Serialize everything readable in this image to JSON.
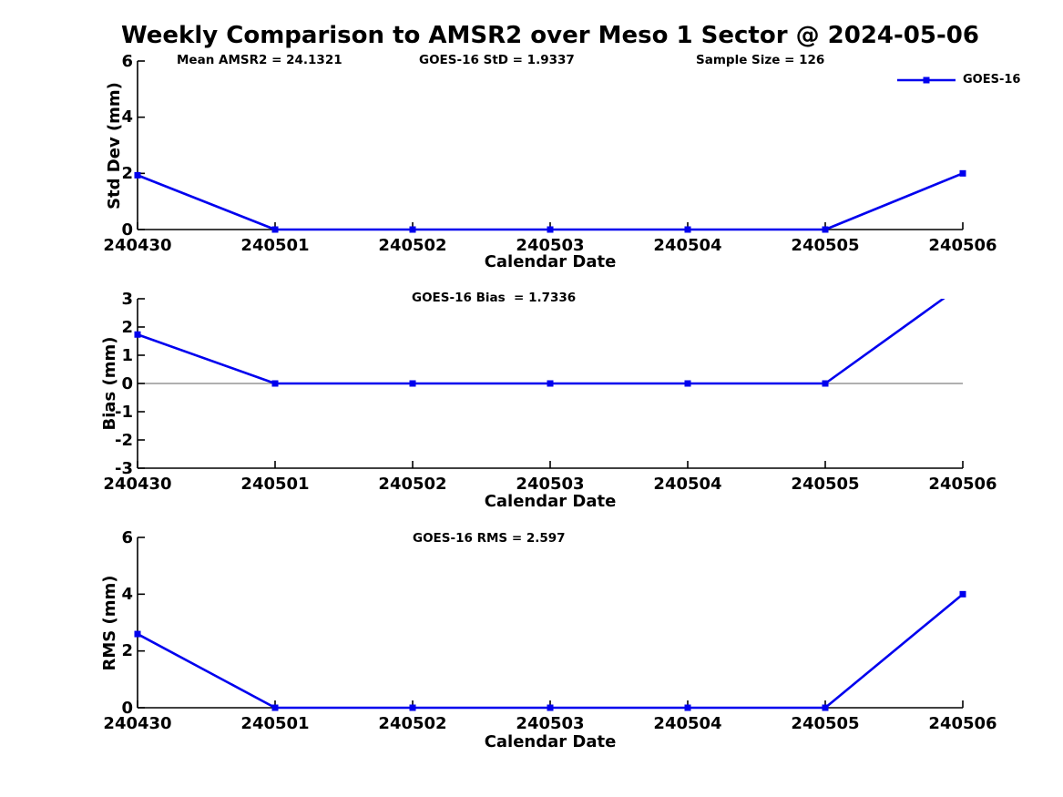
{
  "title": "Weekly Comparison to AMSR2 over Meso 1 Sector @ 2024-05-06",
  "legend": {
    "label": "GOES-16",
    "position": "top-right"
  },
  "colors": {
    "line": "#0000EE",
    "marker": "#0000EE",
    "zero_line": "#808080",
    "axis": "#000000",
    "text": "#000000"
  },
  "chart_data": [
    {
      "type": "line",
      "panel": "std-dev",
      "annotations": [
        "Mean AMSR2 = 24.1321",
        "GOES-16 StD = 1.9337",
        "Sample Size = 126"
      ],
      "categories": [
        "240430",
        "240501",
        "240502",
        "240503",
        "240504",
        "240505",
        "240506"
      ],
      "series": [
        {
          "name": "GOES-16",
          "values": [
            1.9337,
            0,
            0,
            0,
            0,
            0,
            2.0
          ]
        }
      ],
      "xlabel": "Calendar Date",
      "ylabel": "Std Dev (mm)",
      "ylim": [
        0,
        6
      ],
      "yticks": [
        0,
        2,
        4,
        6
      ],
      "grid": false,
      "zero_line": false,
      "legend_position": "top-right"
    },
    {
      "type": "line",
      "panel": "bias",
      "annotations": [
        "GOES-16 Bias  = 1.7336"
      ],
      "categories": [
        "240430",
        "240501",
        "240502",
        "240503",
        "240504",
        "240505",
        "240506"
      ],
      "series": [
        {
          "name": "GOES-16",
          "values": [
            1.7336,
            0,
            0,
            0,
            0,
            0,
            3.5
          ]
        }
      ],
      "xlabel": "Calendar Date",
      "ylabel": "Bias (mm)",
      "ylim": [
        -3,
        3
      ],
      "yticks": [
        3,
        2,
        1,
        0,
        -1,
        -2,
        -3
      ],
      "grid": false,
      "zero_line": true
    },
    {
      "type": "line",
      "panel": "rms",
      "annotations": [
        "GOES-16 RMS = 2.597"
      ],
      "categories": [
        "240430",
        "240501",
        "240502",
        "240503",
        "240504",
        "240505",
        "240506"
      ],
      "series": [
        {
          "name": "GOES-16",
          "values": [
            2.597,
            0,
            0,
            0,
            0,
            0,
            4.0
          ]
        }
      ],
      "xlabel": "Calendar Date",
      "ylabel": "RMS (mm)",
      "ylim": [
        0,
        6
      ],
      "yticks": [
        0,
        2,
        4,
        6
      ],
      "grid": false,
      "zero_line": false
    }
  ]
}
